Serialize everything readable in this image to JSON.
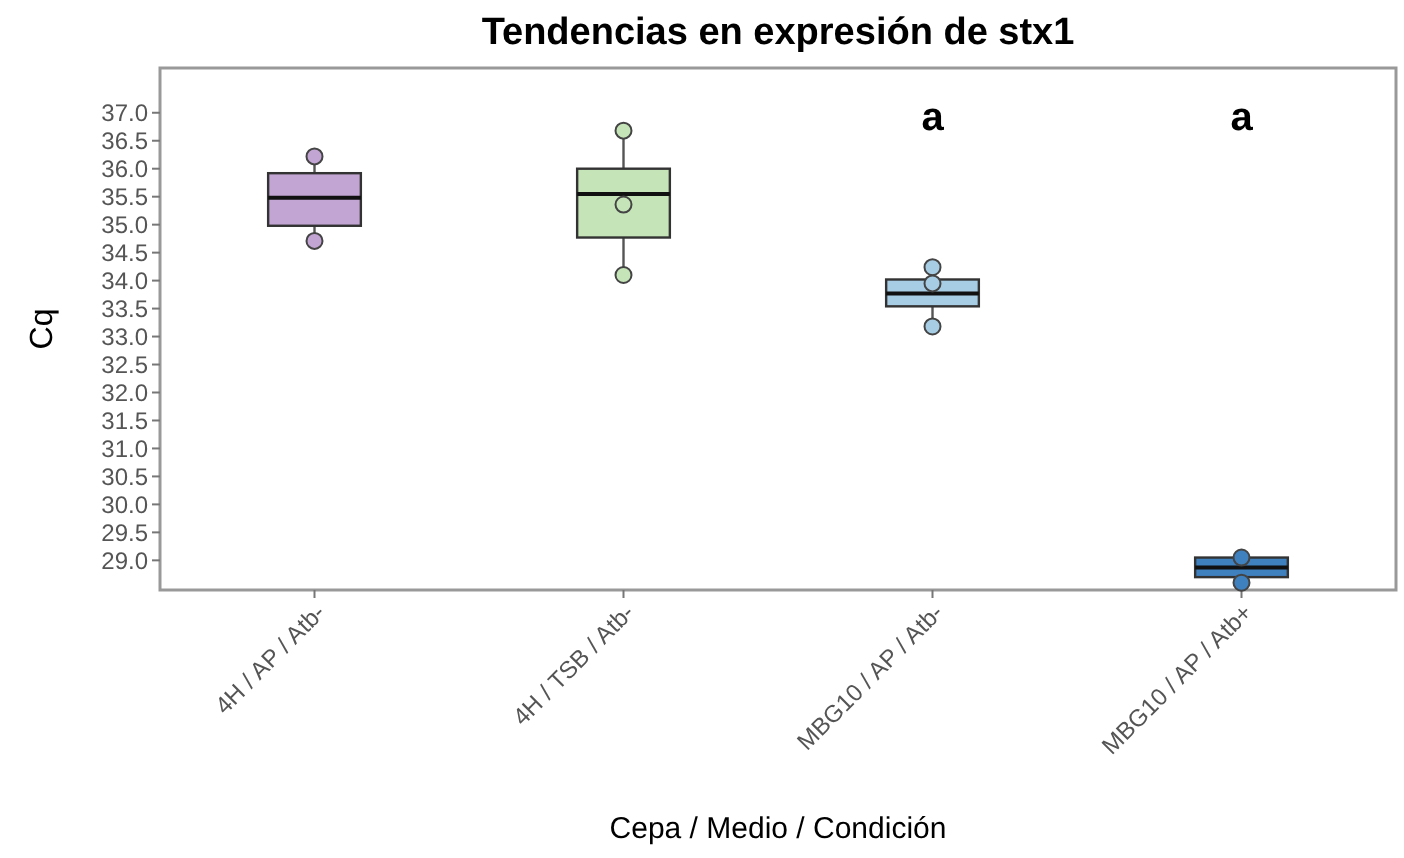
{
  "chart_data": {
    "type": "box",
    "title": "Tendencias en expresión de stx1",
    "xlabel": "Cepa / Medio / Condición",
    "ylabel": "Cq",
    "categories": [
      "4H / AP / Atb-",
      "4H / TSB / Atb-",
      "MBG10 / AP / Atb-",
      "MBG10 / AP / Atb+"
    ],
    "colors": [
      "#c3a5d4",
      "#c5e5b8",
      "#a6cde3",
      "#3f80bf"
    ],
    "boxes": [
      {
        "low": 34.71,
        "q1": 34.98,
        "median": 35.48,
        "q3": 35.92,
        "high": 36.22
      },
      {
        "low": 34.1,
        "q1": 34.77,
        "median": 35.55,
        "q3": 36.0,
        "high": 36.68
      },
      {
        "low": 33.18,
        "q1": 33.54,
        "median": 33.77,
        "q3": 34.02,
        "high": 34.24
      },
      {
        "low": 28.6,
        "q1": 28.7,
        "median": 28.87,
        "q3": 29.05,
        "high": 29.07
      }
    ],
    "series": [
      {
        "type": "scatter",
        "x": [
          "4H / AP / Atb-",
          "4H / AP / Atb-",
          "4H / TSB / Atb-",
          "4H / TSB / Atb-",
          "4H / TSB / Atb-",
          "MBG10 / AP / Atb-",
          "MBG10 / AP / Atb-",
          "MBG10 / AP / Atb-",
          "MBG10 / AP / Atb+",
          "MBG10 / AP / Atb+"
        ],
        "values": [
          36.22,
          34.71,
          36.68,
          35.36,
          34.1,
          34.24,
          33.95,
          33.18,
          29.05,
          28.6
        ],
        "colors": [
          "#c3a5d4",
          "#c3a5d4",
          "#c5e5b8",
          "#c5e5b8",
          "#c5e5b8",
          "#a6cde3",
          "#a6cde3",
          "#a6cde3",
          "#3f80bf",
          "#3f80bf"
        ]
      }
    ],
    "marker": "circle",
    "annotations": [
      "a",
      "a"
    ],
    "ylim": [
      28.47,
      37.8
    ],
    "yticks": [
      {
        "value": 29,
        "label": "29.0"
      },
      {
        "value": 29.5,
        "label": "29.5"
      },
      {
        "value": 30,
        "label": "30.0"
      },
      {
        "value": 30.5,
        "label": "30.5"
      },
      {
        "value": 31,
        "label": "31.0"
      },
      {
        "value": 31.5,
        "label": "31.5"
      },
      {
        "value": 32,
        "label": "32.0"
      },
      {
        "value": 32.5,
        "label": "32.5"
      },
      {
        "value": 33,
        "label": "33.0"
      },
      {
        "value": 33.5,
        "label": "33.5"
      },
      {
        "value": 34,
        "label": "34.0"
      },
      {
        "value": 34.5,
        "label": "34.5"
      },
      {
        "value": 35,
        "label": "35.0"
      },
      {
        "value": 35.5,
        "label": "35.5"
      },
      {
        "value": 36,
        "label": "36.0"
      },
      {
        "value": 36.5,
        "label": "36.5"
      },
      {
        "value": 37,
        "label": "37.0"
      }
    ],
    "grid": false
  }
}
